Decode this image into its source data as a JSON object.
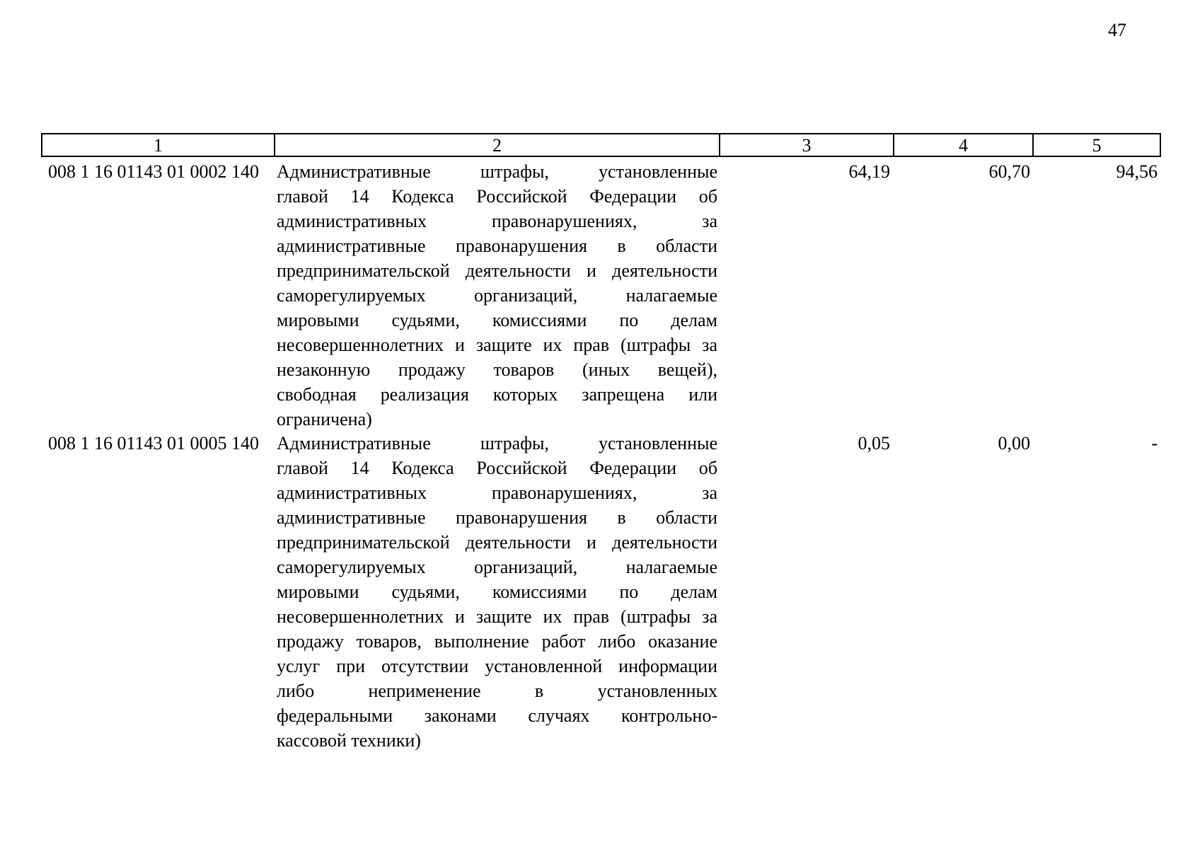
{
  "page_number": "47",
  "table": {
    "headers": [
      "1",
      "2",
      "3",
      "4",
      "5"
    ],
    "rows": [
      {
        "code": "008 1 16 01143 01 0002 140",
        "description_lines": [
          "Административные штрафы, установленные",
          "главой 14 Кодекса Российской Федерации об",
          "административных правонарушениях, за",
          "административные правонарушения в области",
          "предпринимательской деятельности и деятельности",
          "саморегулируемых организаций, налагаемые",
          "мировыми судьями, комиссиями по делам",
          "несовершеннолетних и защите их прав (штрафы за",
          "незаконную продажу товаров (иных вещей),",
          "свободная реализация которых запрещена или",
          "ограничена)"
        ],
        "col3": "64,19",
        "col4": "60,70",
        "col5": "94,56"
      },
      {
        "code": "008 1 16 01143 01 0005 140",
        "description_lines": [
          "Административные штрафы, установленные",
          "главой 14 Кодекса Российской Федерации об",
          "административных правонарушениях, за",
          "административные правонарушения в области",
          "предпринимательской деятельности и деятельности",
          "саморегулируемых организаций, налагаемые",
          "мировыми судьями, комиссиями по делам",
          "несовершеннолетних и защите их прав (штрафы за",
          "продажу товаров, выполнение работ либо оказание",
          "услуг при отсутствии установленной информации",
          "либо неприменение в установленных",
          "федеральными законами случаях контрольно-",
          "кассовой техники)"
        ],
        "col3": "0,05",
        "col4": "0,00",
        "col5": "-"
      }
    ]
  }
}
